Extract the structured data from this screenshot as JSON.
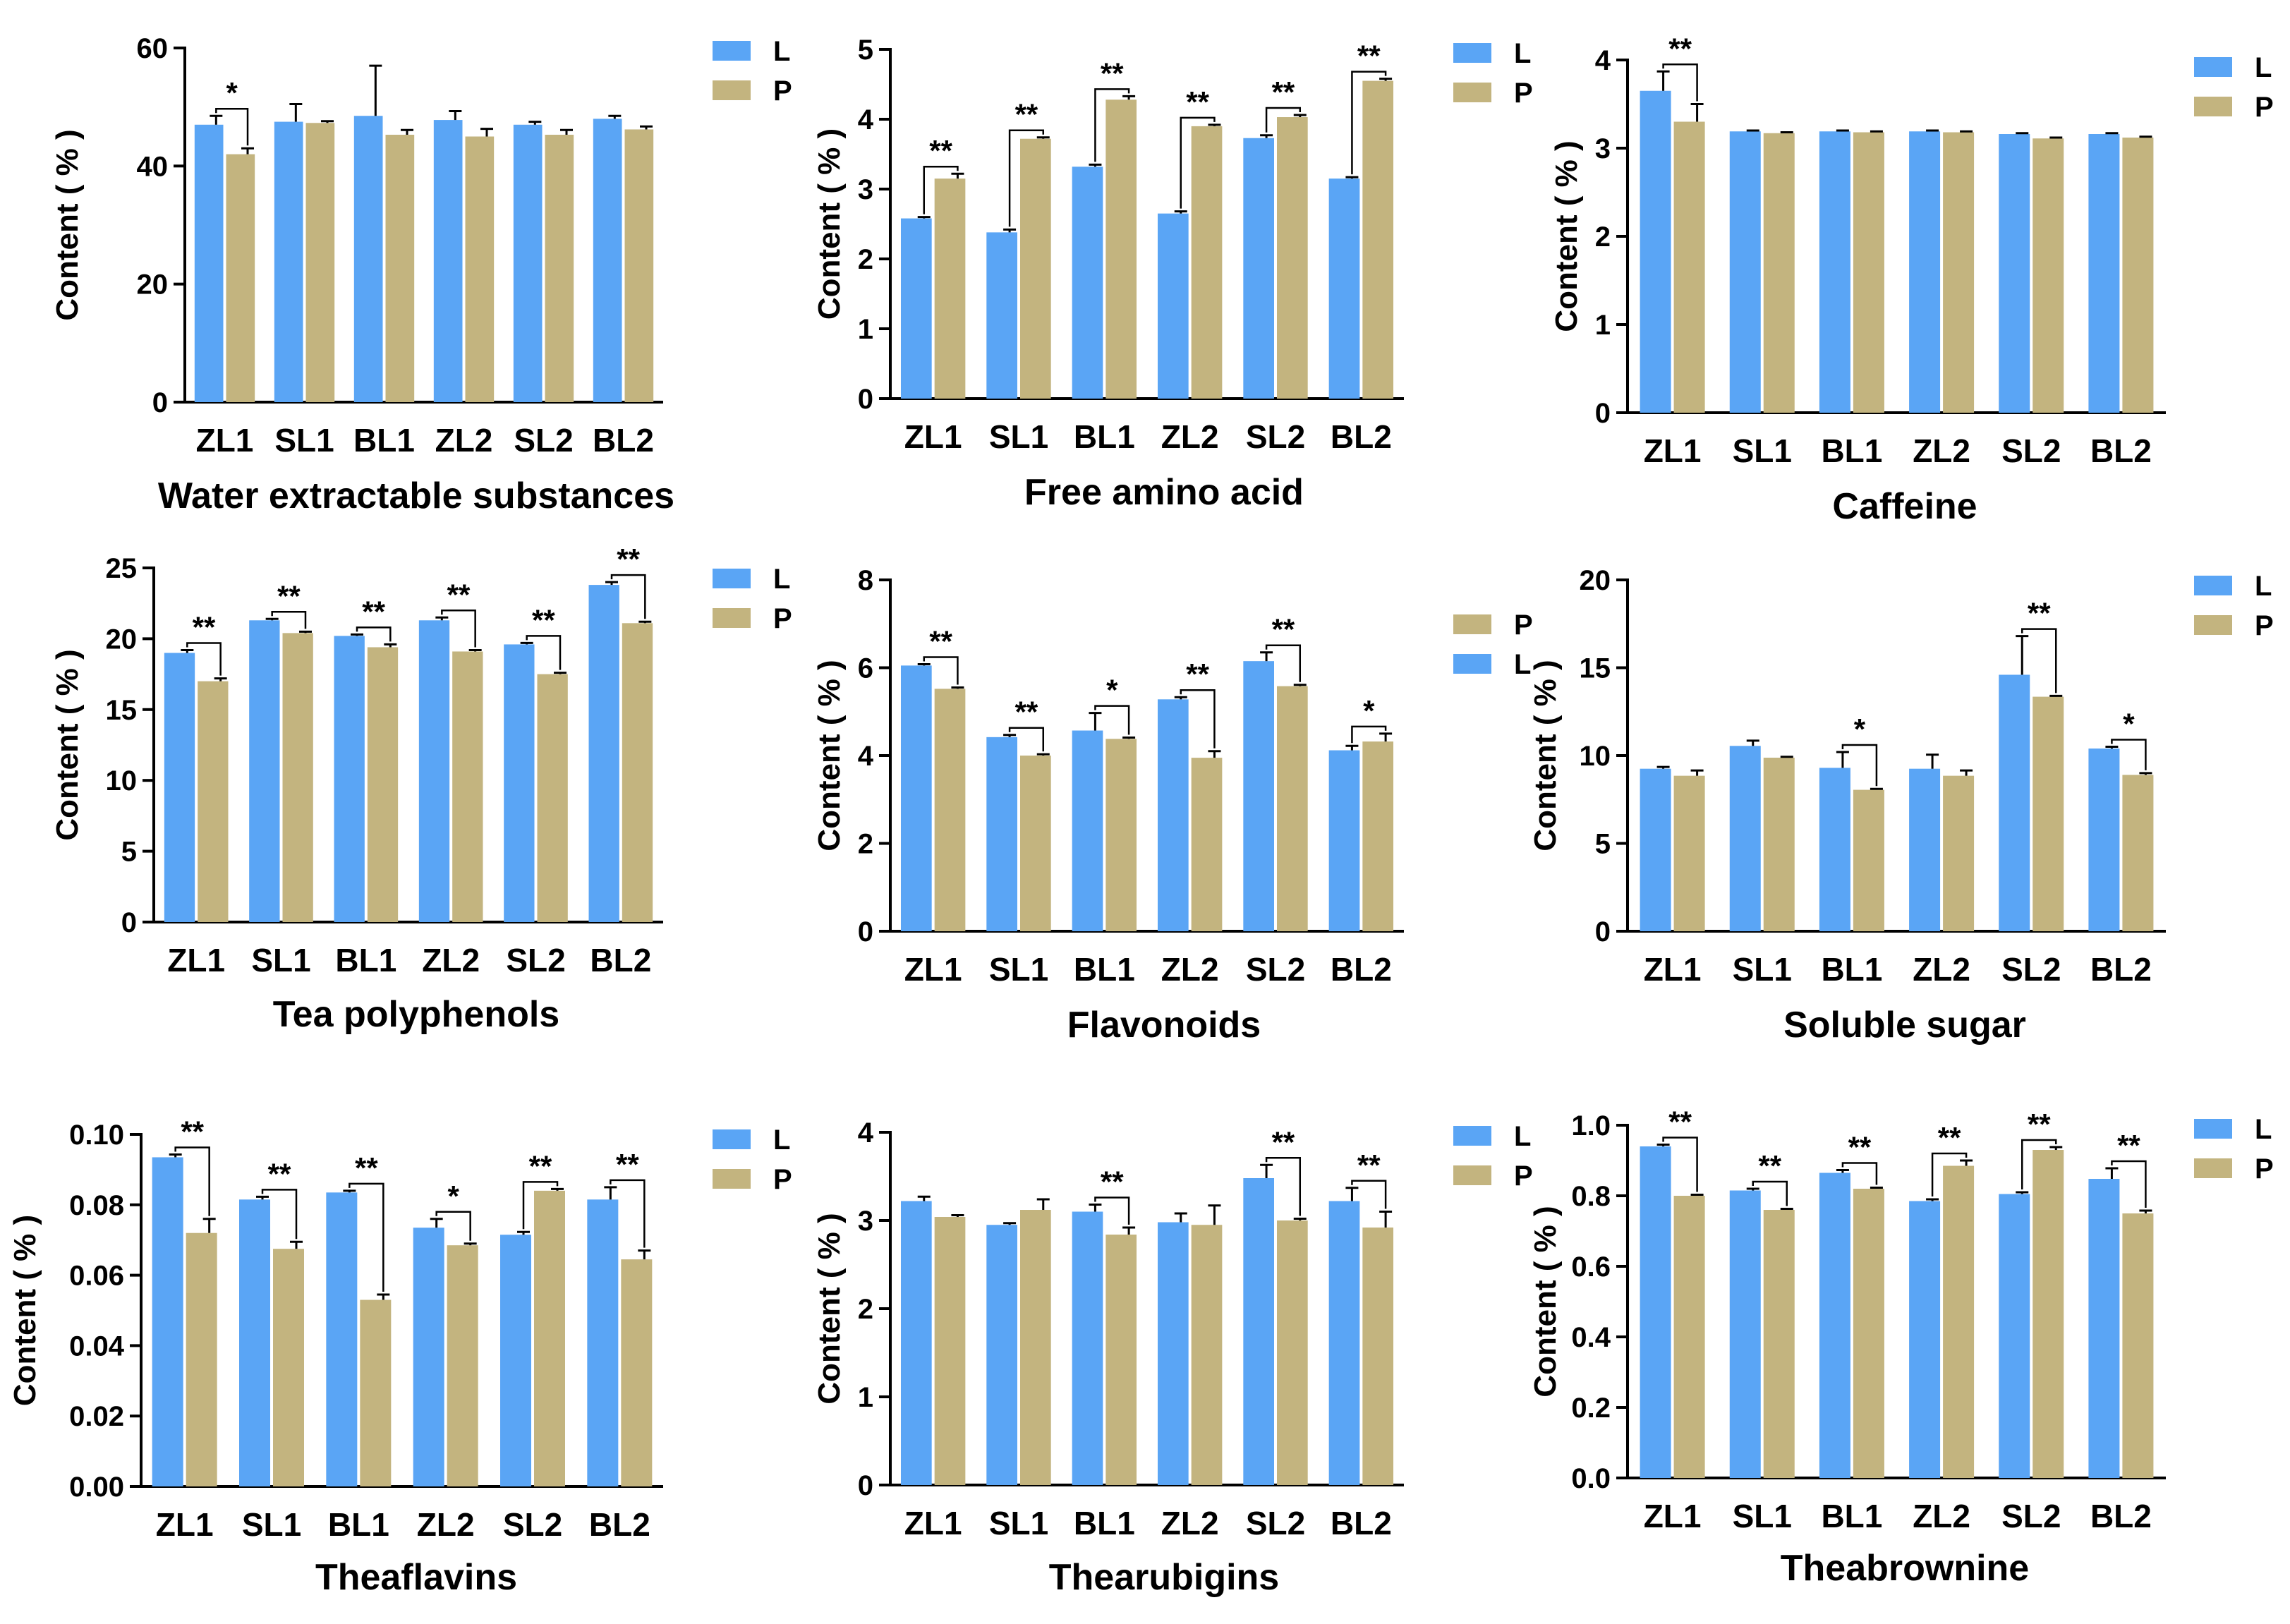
{
  "colors": {
    "L": "#5aa5f5",
    "P": "#c3b47f",
    "axis": "#000000",
    "errorbar": "#000000"
  },
  "chart_data": [
    {
      "type": "bar",
      "title": "Water extractable substances",
      "ylabel": "Content ( % )",
      "xlabel": "",
      "ylim": [
        0,
        60
      ],
      "yticks": [
        "0",
        "20",
        "40",
        "60"
      ],
      "categories": [
        "ZL1",
        "SL1",
        "BL1",
        "ZL2",
        "SL2",
        "BL2"
      ],
      "series": [
        {
          "name": "L",
          "values": [
            47.0,
            47.5,
            48.5,
            47.8,
            47.0,
            48.0
          ],
          "errors": [
            1.5,
            3.0,
            8.5,
            1.5,
            0.5,
            0.5
          ]
        },
        {
          "name": "P",
          "values": [
            42.0,
            47.3,
            45.3,
            45.0,
            45.3,
            46.2
          ],
          "errors": [
            1.0,
            0.3,
            0.8,
            1.3,
            0.8,
            0.5
          ]
        }
      ],
      "legend": [
        "L",
        "P"
      ],
      "legend_position": "top-right",
      "significance": [
        "*",
        "",
        "",
        "",
        "",
        ""
      ]
    },
    {
      "type": "bar",
      "title": "Free amino acid",
      "ylabel": "Content ( % )",
      "xlabel": "",
      "ylim": [
        0,
        5
      ],
      "yticks": [
        "0",
        "1",
        "2",
        "3",
        "4",
        "5"
      ],
      "categories": [
        "ZL1",
        "SL1",
        "BL1",
        "ZL2",
        "SL2",
        "BL2"
      ],
      "series": [
        {
          "name": "L",
          "values": [
            2.58,
            2.38,
            3.32,
            2.65,
            3.73,
            3.15
          ],
          "errors": [
            0.02,
            0.04,
            0.03,
            0.03,
            0.04,
            0.02
          ]
        },
        {
          "name": "P",
          "values": [
            3.15,
            3.72,
            4.28,
            3.9,
            4.03,
            4.55
          ],
          "errors": [
            0.07,
            0.02,
            0.05,
            0.02,
            0.03,
            0.03
          ]
        }
      ],
      "legend": [
        "L",
        "P"
      ],
      "legend_position": "top-right",
      "significance": [
        "**",
        "**",
        "**",
        "**",
        "**",
        "**"
      ]
    },
    {
      "type": "bar",
      "title": "Caffeine",
      "ylabel": "Content ( % )",
      "xlabel": "",
      "ylim": [
        0,
        4
      ],
      "yticks": [
        "0",
        "1",
        "2",
        "3",
        "4"
      ],
      "categories": [
        "ZL1",
        "SL1",
        "BL1",
        "ZL2",
        "SL2",
        "BL2"
      ],
      "series": [
        {
          "name": "L",
          "values": [
            3.65,
            3.19,
            3.19,
            3.19,
            3.16,
            3.16
          ],
          "errors": [
            0.22,
            0.01,
            0.01,
            0.01,
            0.01,
            0.01
          ]
        },
        {
          "name": "P",
          "values": [
            3.3,
            3.17,
            3.18,
            3.18,
            3.11,
            3.12
          ],
          "errors": [
            0.2,
            0.01,
            0.01,
            0.01,
            0.01,
            0.01
          ]
        }
      ],
      "legend": [
        "L",
        "P"
      ],
      "legend_position": "top-right",
      "significance": [
        "**",
        "",
        "",
        "",
        "",
        ""
      ]
    },
    {
      "type": "bar",
      "title": "Tea polyphenols",
      "ylabel": "Content ( % )",
      "xlabel": "",
      "ylim": [
        0,
        25
      ],
      "yticks": [
        "0",
        "5",
        "10",
        "15",
        "20",
        "25"
      ],
      "categories": [
        "ZL1",
        "SL1",
        "BL1",
        "ZL2",
        "SL2",
        "BL2"
      ],
      "series": [
        {
          "name": "L",
          "values": [
            19.0,
            21.3,
            20.2,
            21.3,
            19.6,
            23.8
          ],
          "errors": [
            0.2,
            0.1,
            0.1,
            0.2,
            0.1,
            0.2
          ]
        },
        {
          "name": "P",
          "values": [
            17.0,
            20.4,
            19.4,
            19.1,
            17.5,
            21.1
          ],
          "errors": [
            0.2,
            0.1,
            0.2,
            0.1,
            0.1,
            0.1
          ]
        }
      ],
      "legend": [
        "L",
        "P"
      ],
      "legend_position": "top-right",
      "significance": [
        "**",
        "**",
        "**",
        "**",
        "**",
        "**"
      ]
    },
    {
      "type": "bar",
      "title": "Flavonoids",
      "ylabel": "Content ( % )",
      "xlabel": "",
      "ylim": [
        0,
        8
      ],
      "yticks": [
        "0",
        "2",
        "4",
        "6",
        "8"
      ],
      "categories": [
        "ZL1",
        "SL1",
        "BL1",
        "ZL2",
        "SL2",
        "BL2"
      ],
      "series": [
        {
          "name": "L",
          "values": [
            6.05,
            4.42,
            4.57,
            5.28,
            6.15,
            4.12
          ],
          "errors": [
            0.03,
            0.05,
            0.4,
            0.05,
            0.2,
            0.1
          ]
        },
        {
          "name": "P",
          "values": [
            5.52,
            4.0,
            4.38,
            3.95,
            5.58,
            4.32
          ],
          "errors": [
            0.03,
            0.03,
            0.03,
            0.15,
            0.03,
            0.18
          ]
        }
      ],
      "legend": [
        "P",
        "L"
      ],
      "legend_position": "right",
      "significance": [
        "**",
        "**",
        "*",
        "**",
        "**",
        "*"
      ]
    },
    {
      "type": "bar",
      "title": "Soluble sugar",
      "ylabel": "Content ( % )",
      "xlabel": "",
      "ylim": [
        0,
        20
      ],
      "yticks": [
        "0",
        "5",
        "10",
        "15",
        "20"
      ],
      "categories": [
        "ZL1",
        "SL1",
        "BL1",
        "ZL2",
        "SL2",
        "BL2"
      ],
      "series": [
        {
          "name": "L",
          "values": [
            9.25,
            10.55,
            9.3,
            9.25,
            14.6,
            10.4
          ],
          "errors": [
            0.1,
            0.3,
            0.9,
            0.8,
            2.2,
            0.1
          ]
        },
        {
          "name": "P",
          "values": [
            8.85,
            9.88,
            8.05,
            8.85,
            13.35,
            8.9
          ],
          "errors": [
            0.3,
            0.05,
            0.05,
            0.3,
            0.05,
            0.1
          ]
        }
      ],
      "legend": [
        "L",
        "P"
      ],
      "legend_position": "top-right",
      "significance": [
        "",
        "",
        "*",
        "",
        "**",
        "*"
      ]
    },
    {
      "type": "bar",
      "title": "Theaflavins",
      "ylabel": "Content ( % )",
      "xlabel": "",
      "ylim": [
        0,
        0.1
      ],
      "yticks": [
        "0.00",
        "0.02",
        "0.04",
        "0.06",
        "0.08",
        "0.10"
      ],
      "categories": [
        "ZL1",
        "SL1",
        "BL1",
        "ZL2",
        "SL2",
        "BL2"
      ],
      "series": [
        {
          "name": "L",
          "values": [
            0.0935,
            0.0815,
            0.0835,
            0.0735,
            0.0715,
            0.0815
          ],
          "errors": [
            0.0008,
            0.0008,
            0.0005,
            0.0025,
            0.0008,
            0.0035
          ]
        },
        {
          "name": "P",
          "values": [
            0.072,
            0.0675,
            0.053,
            0.0685,
            0.084,
            0.0645
          ],
          "errors": [
            0.004,
            0.002,
            0.0015,
            0.0005,
            0.0005,
            0.0025
          ]
        }
      ],
      "legend": [
        "L",
        "P"
      ],
      "legend_position": "top-right",
      "significance": [
        "**",
        "**",
        "**",
        "*",
        "**",
        "**"
      ]
    },
    {
      "type": "bar",
      "title": "Thearubigins",
      "ylabel": "Content ( % )",
      "xlabel": "",
      "ylim": [
        0,
        4
      ],
      "yticks": [
        "0",
        "1",
        "2",
        "3",
        "4"
      ],
      "categories": [
        "ZL1",
        "SL1",
        "BL1",
        "ZL2",
        "SL2",
        "BL2"
      ],
      "series": [
        {
          "name": "L",
          "values": [
            3.22,
            2.95,
            3.1,
            2.98,
            3.48,
            3.22
          ],
          "errors": [
            0.05,
            0.02,
            0.08,
            0.1,
            0.15,
            0.15
          ]
        },
        {
          "name": "P",
          "values": [
            3.04,
            3.12,
            2.84,
            2.95,
            3.0,
            2.92
          ],
          "errors": [
            0.02,
            0.12,
            0.08,
            0.22,
            0.02,
            0.18
          ]
        }
      ],
      "legend": [
        "L",
        "P"
      ],
      "legend_position": "top-right",
      "significance": [
        "",
        "",
        "**",
        "",
        "**",
        "**"
      ]
    },
    {
      "type": "bar",
      "title": "Theabrownine",
      "ylabel": "Content ( % )",
      "xlabel": "",
      "ylim": [
        0,
        1.0
      ],
      "yticks": [
        "0.0",
        "0.2",
        "0.4",
        "0.6",
        "0.8",
        "1.0"
      ],
      "categories": [
        "ZL1",
        "SL1",
        "BL1",
        "ZL2",
        "SL2",
        "BL2"
      ],
      "series": [
        {
          "name": "L",
          "values": [
            0.94,
            0.815,
            0.865,
            0.785,
            0.805,
            0.848
          ],
          "errors": [
            0.005,
            0.005,
            0.008,
            0.005,
            0.005,
            0.03
          ]
        },
        {
          "name": "P",
          "values": [
            0.8,
            0.76,
            0.82,
            0.885,
            0.93,
            0.75
          ],
          "errors": [
            0.003,
            0.003,
            0.003,
            0.015,
            0.008,
            0.008
          ]
        }
      ],
      "legend": [
        "L",
        "P"
      ],
      "legend_position": "top-right",
      "significance": [
        "**",
        "**",
        "**",
        "**",
        "**",
        "**"
      ]
    }
  ]
}
